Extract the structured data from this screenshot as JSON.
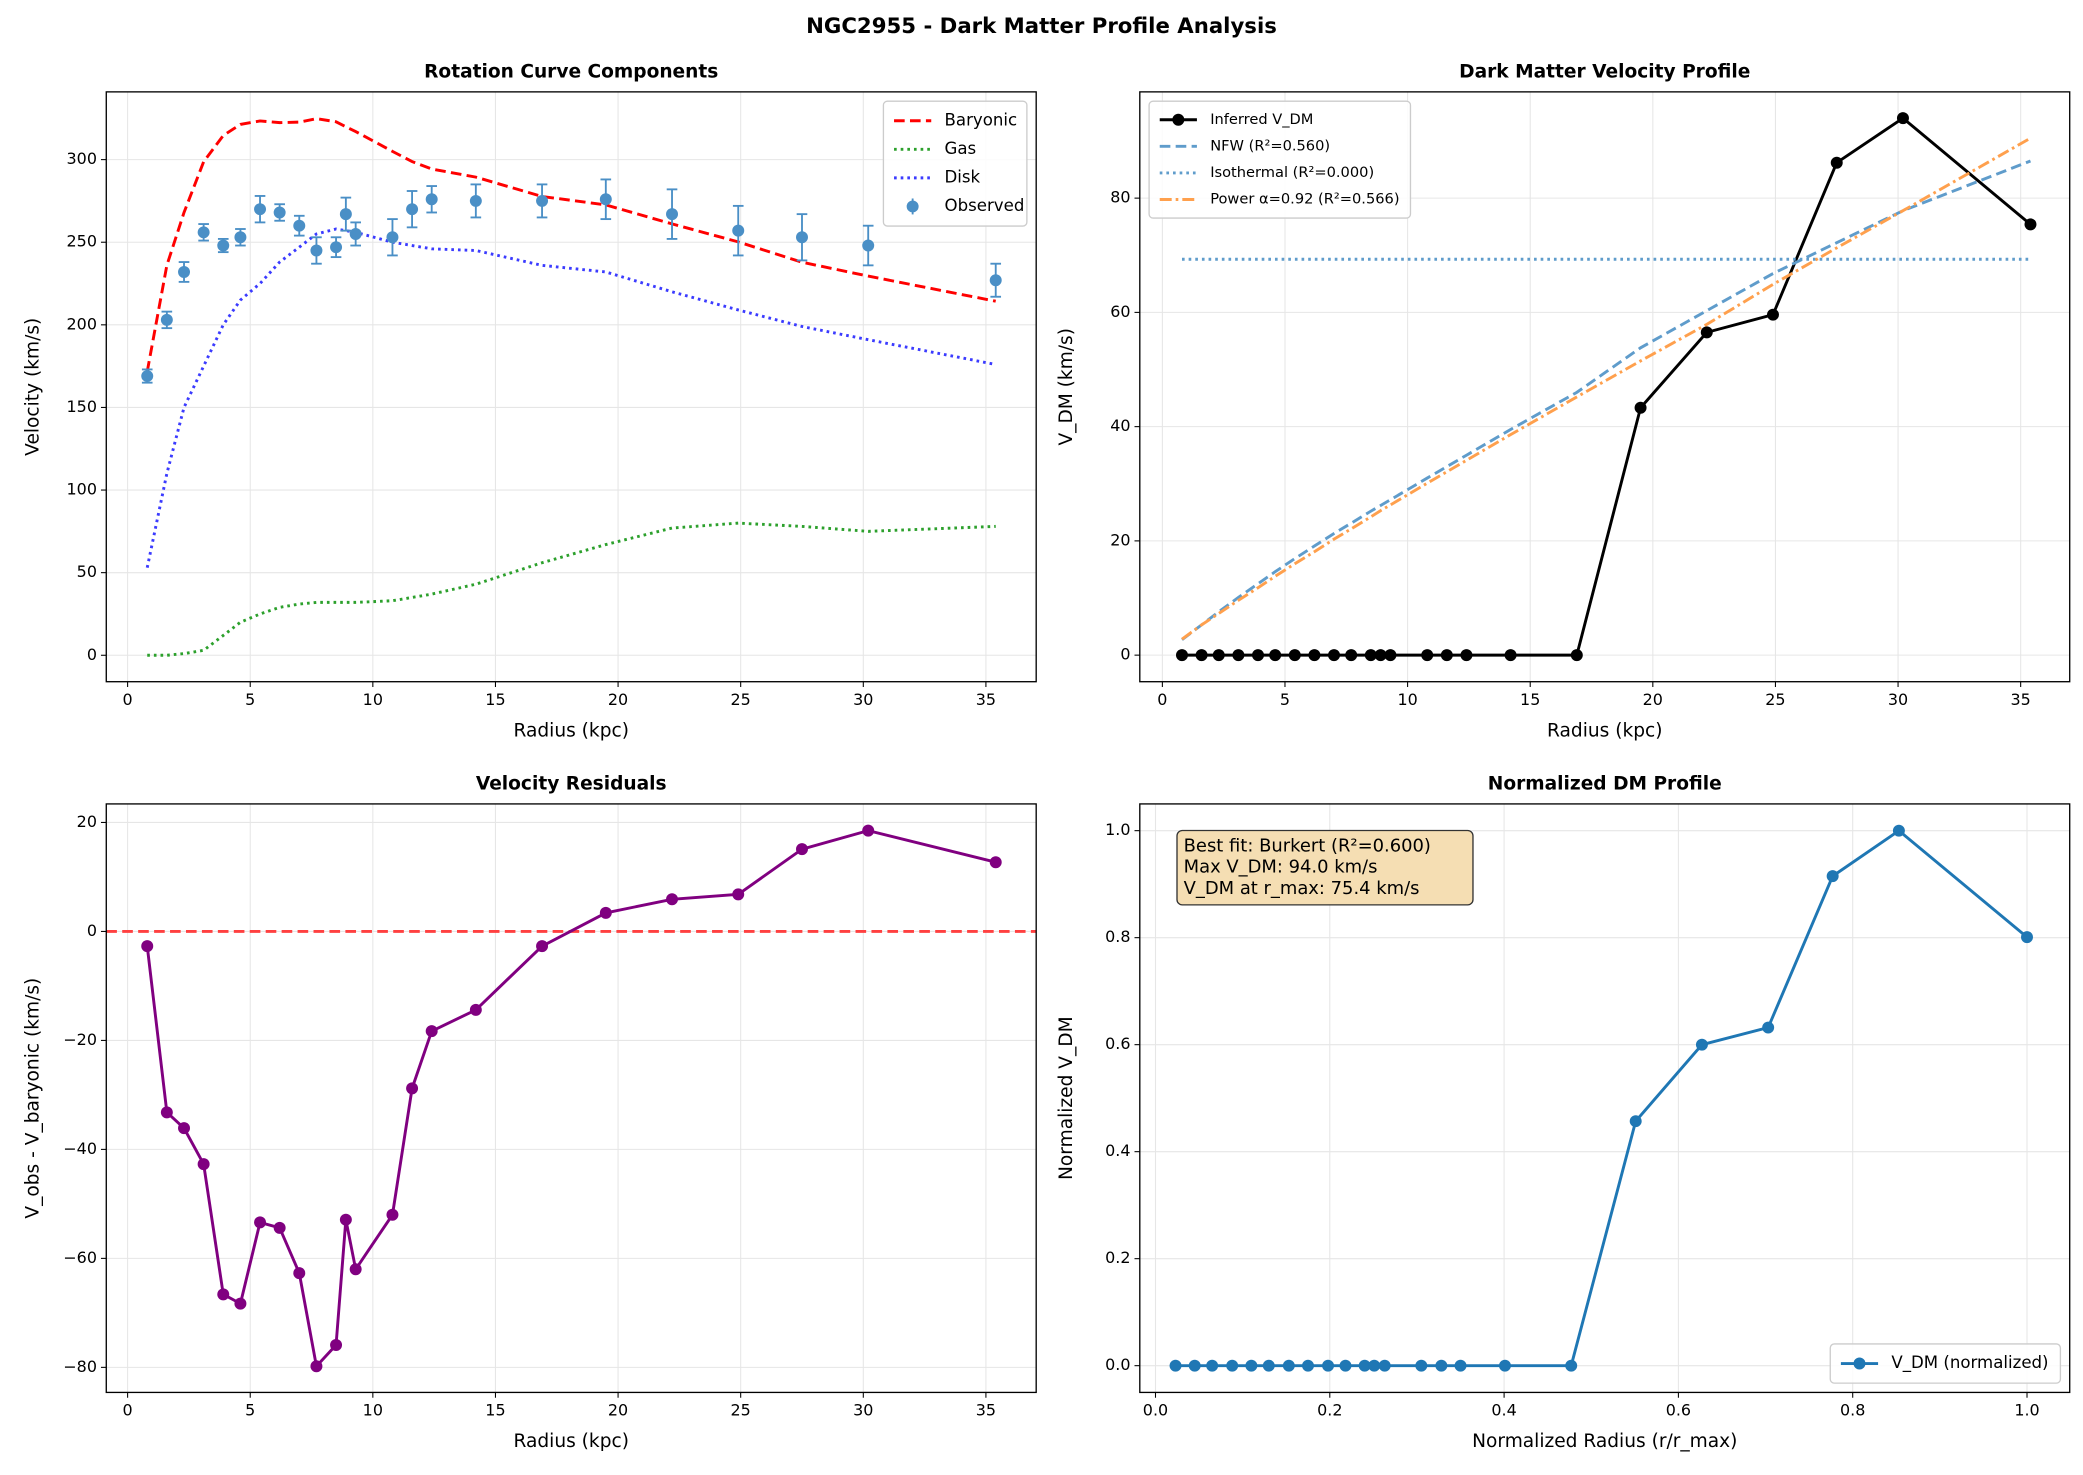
{
  "figure_title": "NGC2955 - Dark Matter Profile Analysis",
  "chart_data": [
    {
      "type": "line",
      "title": "Rotation Curve Components",
      "xlabel": "Radius (kpc)",
      "ylabel": "Velocity (km/s)",
      "x": [
        0.8,
        1.6,
        2.3,
        3.1,
        3.9,
        4.6,
        5.4,
        6.2,
        7.0,
        7.7,
        8.5,
        8.9,
        9.3,
        10.8,
        11.6,
        12.4,
        14.2,
        16.9,
        19.5,
        22.2,
        24.9,
        27.5,
        30.2,
        35.4
      ],
      "xlim": [
        -0.87,
        37.05
      ],
      "xticks": [
        0,
        5,
        10,
        15,
        20,
        25,
        30,
        35
      ],
      "ylim": [
        -16,
        341
      ],
      "yticks": [
        0,
        50,
        100,
        150,
        200,
        250,
        300
      ],
      "grid": true,
      "legend": "upper right",
      "series": [
        {
          "name": "Baryonic",
          "color": "#ff0000",
          "linestyle": "dashed",
          "marker": false,
          "values": [
            171.7,
            236,
            268,
            298.7,
            314.6,
            321.3,
            323.4,
            322.4,
            322.7,
            324.8,
            322.9,
            319.9,
            317,
            305,
            298.8,
            294.3,
            289.4,
            277.7,
            272.6,
            261.1,
            250.2,
            237.9,
            229.5,
            214.3
          ]
        },
        {
          "name": "Gas",
          "color": "#2ca02c",
          "linestyle": "dotted",
          "marker": false,
          "values": [
            0,
            0,
            1,
            3,
            12,
            20,
            25,
            29,
            31,
            32,
            32,
            32,
            32,
            33,
            35,
            37,
            43,
            56,
            67,
            77,
            80,
            78,
            75,
            78
          ]
        },
        {
          "name": "Disk",
          "color": "#3b3bff",
          "linestyle": "dotted",
          "marker": false,
          "values": [
            53,
            110,
            150,
            175,
            200,
            215,
            225,
            238,
            247,
            255,
            258,
            257,
            256,
            250,
            248,
            246,
            245,
            236,
            232,
            220,
            209,
            199,
            191,
            176
          ]
        },
        {
          "name": "Observed",
          "color": "#4a8fc6",
          "linestyle": "none",
          "marker": true,
          "values": [
            169,
            203,
            232,
            256,
            248,
            253,
            270,
            268,
            260,
            245,
            247,
            267,
            255,
            253,
            270,
            276,
            275,
            275,
            276,
            267,
            257,
            253,
            248,
            227
          ],
          "errors": [
            4,
            5,
            6,
            5,
            4,
            5,
            8,
            5,
            6,
            8,
            6,
            10,
            7,
            11,
            11,
            8,
            10,
            10,
            12,
            15,
            15,
            14,
            12,
            10
          ]
        }
      ]
    },
    {
      "type": "line",
      "title": "Dark Matter Velocity Profile",
      "xlabel": "Radius (kpc)",
      "ylabel": "V_DM (km/s)",
      "x": [
        0.8,
        1.6,
        2.3,
        3.1,
        3.9,
        4.6,
        5.4,
        6.2,
        7.0,
        7.7,
        8.5,
        8.9,
        9.3,
        10.8,
        11.6,
        12.4,
        14.2,
        16.9,
        19.5,
        22.2,
        24.9,
        27.5,
        30.2,
        35.4
      ],
      "xlim": [
        -0.92,
        37.0
      ],
      "xticks": [
        0,
        5,
        10,
        15,
        20,
        25,
        30,
        35
      ],
      "ylim": [
        -4.65,
        98.6
      ],
      "yticks": [
        0,
        20,
        40,
        60,
        80
      ],
      "grid": true,
      "legend": "upper left",
      "series": [
        {
          "name": "Inferred V_DM",
          "color": "#000000",
          "linestyle": "solid",
          "marker": true,
          "values": [
            0,
            0,
            0,
            0,
            0,
            0,
            0,
            0,
            0,
            0,
            0,
            0,
            0,
            0,
            0,
            0,
            0,
            0,
            43.3,
            56.5,
            59.6,
            86.2,
            94.0,
            75.4
          ]
        },
        {
          "name": "NFW (R²=0.560)",
          "color": "#5f9ccb",
          "linestyle": "dashed",
          "marker": false,
          "values": [
            2.7,
            5.3,
            7.6,
            10.1,
            12.5,
            14.6,
            16.9,
            19.1,
            21.3,
            23.1,
            25.2,
            26.2,
            27.2,
            31,
            33,
            35,
            39.5,
            46,
            53.8,
            60.3,
            66.8,
            72.2,
            77.8,
            86.5
          ]
        },
        {
          "name": "Isothermal (R²=0.000)",
          "color": "#5f9ccb",
          "linestyle": "dotted",
          "marker": false,
          "values": [
            69.3,
            69.3,
            69.3,
            69.3,
            69.3,
            69.3,
            69.3,
            69.3,
            69.3,
            69.3,
            69.3,
            69.3,
            69.3,
            69.3,
            69.3,
            69.3,
            69.3,
            69.3,
            69.3,
            69.3,
            69.3,
            69.3,
            69.3,
            69.3
          ]
        },
        {
          "name": "Power α=0.92 (R²=0.566)",
          "color": "#ffa04d",
          "linestyle": "dashdot",
          "marker": false,
          "values": [
            2.8,
            5.3,
            7.3,
            9.6,
            11.8,
            13.8,
            16.0,
            18.1,
            20.3,
            22.1,
            24.2,
            25.3,
            26.3,
            30.1,
            32.1,
            34.1,
            38.6,
            45.2,
            51.5,
            57.9,
            64.9,
            71.3,
            77.8,
            90.5
          ]
        }
      ]
    },
    {
      "type": "line",
      "title": "Velocity Residuals",
      "xlabel": "Radius (kpc)",
      "ylabel": "V_obs - V_baryonic (km/s)",
      "x": [
        0.8,
        1.6,
        2.3,
        3.1,
        3.9,
        4.6,
        5.4,
        6.2,
        7.0,
        7.7,
        8.5,
        8.9,
        9.3,
        10.8,
        11.6,
        12.4,
        14.2,
        16.9,
        19.5,
        22.2,
        24.9,
        27.5,
        30.2,
        35.4
      ],
      "xlim": [
        -0.87,
        37.05
      ],
      "xticks": [
        0,
        5,
        10,
        15,
        20,
        25,
        30,
        35
      ],
      "ylim": [
        -84.6,
        23.4
      ],
      "yticks": [
        {
          "value": -80,
          "label": "−80"
        },
        {
          "value": -60,
          "label": "−60"
        },
        {
          "value": -40,
          "label": "−40"
        },
        {
          "value": -20,
          "label": "−20"
        },
        0,
        20
      ],
      "grid": true,
      "hline": {
        "value": 0,
        "color": "#ff4040"
      },
      "series": [
        {
          "color": "#800080",
          "linestyle": "solid",
          "marker": true,
          "values": [
            -2.7,
            -33.2,
            -36.1,
            -42.7,
            -66.6,
            -68.3,
            -53.4,
            -54.4,
            -62.7,
            -79.8,
            -75.9,
            -52.9,
            -62.0,
            -52.0,
            -28.8,
            -18.3,
            -14.4,
            -2.7,
            3.4,
            5.9,
            6.8,
            15.1,
            18.5,
            12.7
          ]
        }
      ]
    },
    {
      "type": "line",
      "title": "Normalized DM Profile",
      "xlabel": "Normalized Radius (r/r_max)",
      "ylabel": "Normalized V_DM",
      "x": [
        0.023,
        0.045,
        0.065,
        0.088,
        0.11,
        0.13,
        0.153,
        0.175,
        0.198,
        0.218,
        0.24,
        0.251,
        0.263,
        0.305,
        0.328,
        0.35,
        0.401,
        0.477,
        0.551,
        0.627,
        0.703,
        0.777,
        0.853,
        1.0
      ],
      "xlim": [
        -0.018,
        1.049
      ],
      "xticks": [
        {
          "value": 0,
          "label": "0.0"
        },
        0.2,
        0.4,
        0.6,
        0.8,
        {
          "value": 1,
          "label": "1.0"
        }
      ],
      "ylim": [
        -0.05,
        1.05
      ],
      "yticks": [
        {
          "value": 0,
          "label": "0.0"
        },
        0.2,
        0.4,
        0.6,
        0.8,
        {
          "value": 1,
          "label": "1.0"
        }
      ],
      "grid": true,
      "legend": "lower right",
      "annotation": [
        "Best fit: Burkert (R²=0.600)",
        "Max V_DM: 94.0 km/s",
        "V_DM at r_max: 75.4 km/s"
      ],
      "series": [
        {
          "name": "V_DM (normalized)",
          "color": "#1f77b4",
          "linestyle": "solid",
          "marker": true,
          "values": [
            0,
            0,
            0,
            0,
            0,
            0,
            0,
            0,
            0,
            0,
            0,
            0,
            0,
            0,
            0,
            0,
            0,
            0,
            0.457,
            0.6,
            0.632,
            0.915,
            1.0,
            0.801
          ]
        }
      ]
    }
  ]
}
